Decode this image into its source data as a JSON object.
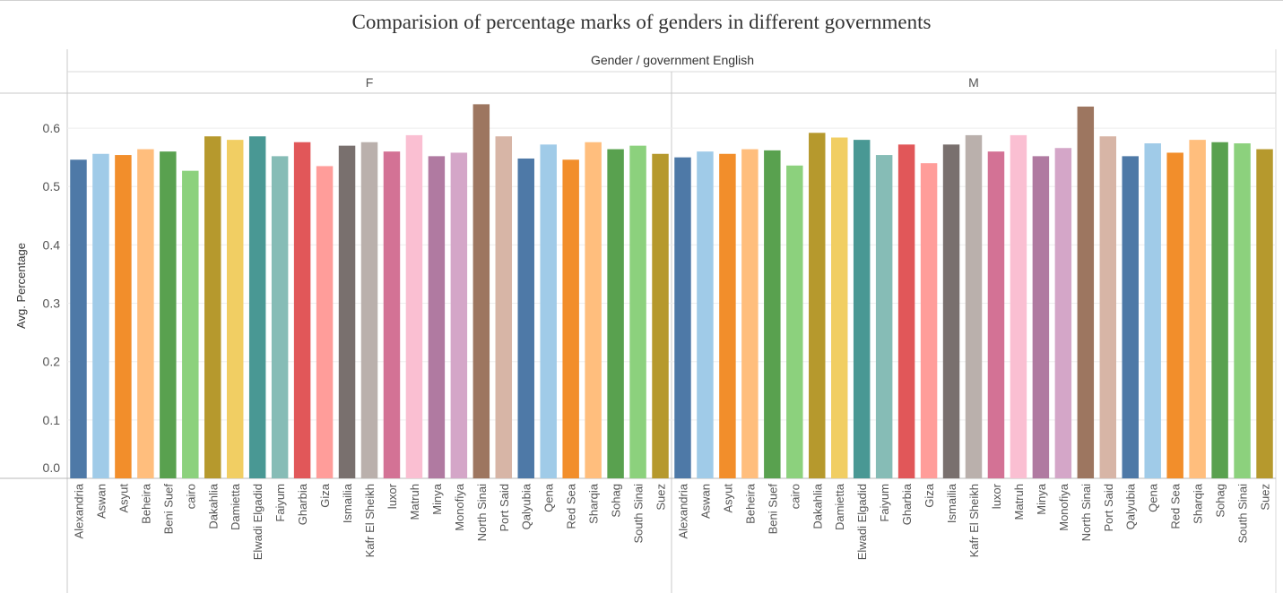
{
  "chart_data": {
    "type": "bar",
    "title": "Comparision of percentage marks of genders in different governments",
    "column_header": "Gender / government English",
    "ylabel": "Avg. Percentage",
    "ylim": [
      0,
      0.66
    ],
    "yticks": [
      "0.0",
      "0.1",
      "0.2",
      "0.3",
      "0.4",
      "0.5",
      "0.6"
    ],
    "grid": true,
    "categories": [
      "Alexandria",
      "Aswan",
      "Asyut",
      "Beheira",
      "Beni Suef",
      "cairo",
      "Dakahlia",
      "Damietta",
      "Elwadi Elgadid",
      "Faiyum",
      "Gharbia",
      "Giza",
      "Ismailia",
      "Kafr El Sheikh",
      "luxor",
      "Matruh",
      "Minya",
      "Monofiya",
      "North Sinai",
      "Port Said",
      "Qalyubia",
      "Qena",
      "Red Sea",
      "Sharqia",
      "Sohag",
      "South Sinai",
      "Suez"
    ],
    "colors": [
      "#4e79a7",
      "#a0cbe8",
      "#f28e2b",
      "#ffbe7d",
      "#59a14f",
      "#8cd17d",
      "#b6992d",
      "#f1ce63",
      "#499894",
      "#86bcb6",
      "#e15759",
      "#ff9d9a",
      "#79706e",
      "#bab0ac",
      "#d37295",
      "#fabfd2",
      "#b07aa1",
      "#d4a6c8",
      "#9d7660",
      "#d7b5a6",
      "#4e79a7",
      "#a0cbe8",
      "#f28e2b",
      "#ffbe7d",
      "#59a14f",
      "#8cd17d",
      "#b6992d"
    ],
    "series": [
      {
        "name": "F",
        "values": [
          0.546,
          0.556,
          0.554,
          0.564,
          0.56,
          0.527,
          0.586,
          0.58,
          0.586,
          0.552,
          0.576,
          0.535,
          0.57,
          0.576,
          0.56,
          0.588,
          0.552,
          0.558,
          0.641,
          0.586,
          0.548,
          0.572,
          0.546,
          0.576,
          0.564,
          0.57,
          0.556
        ]
      },
      {
        "name": "M",
        "values": [
          0.55,
          0.56,
          0.556,
          0.564,
          0.562,
          0.536,
          0.592,
          0.584,
          0.58,
          0.554,
          0.572,
          0.54,
          0.572,
          0.588,
          0.56,
          0.588,
          0.552,
          0.566,
          0.637,
          0.586,
          0.552,
          0.574,
          0.558,
          0.58,
          0.576,
          0.574,
          0.564
        ]
      }
    ]
  }
}
